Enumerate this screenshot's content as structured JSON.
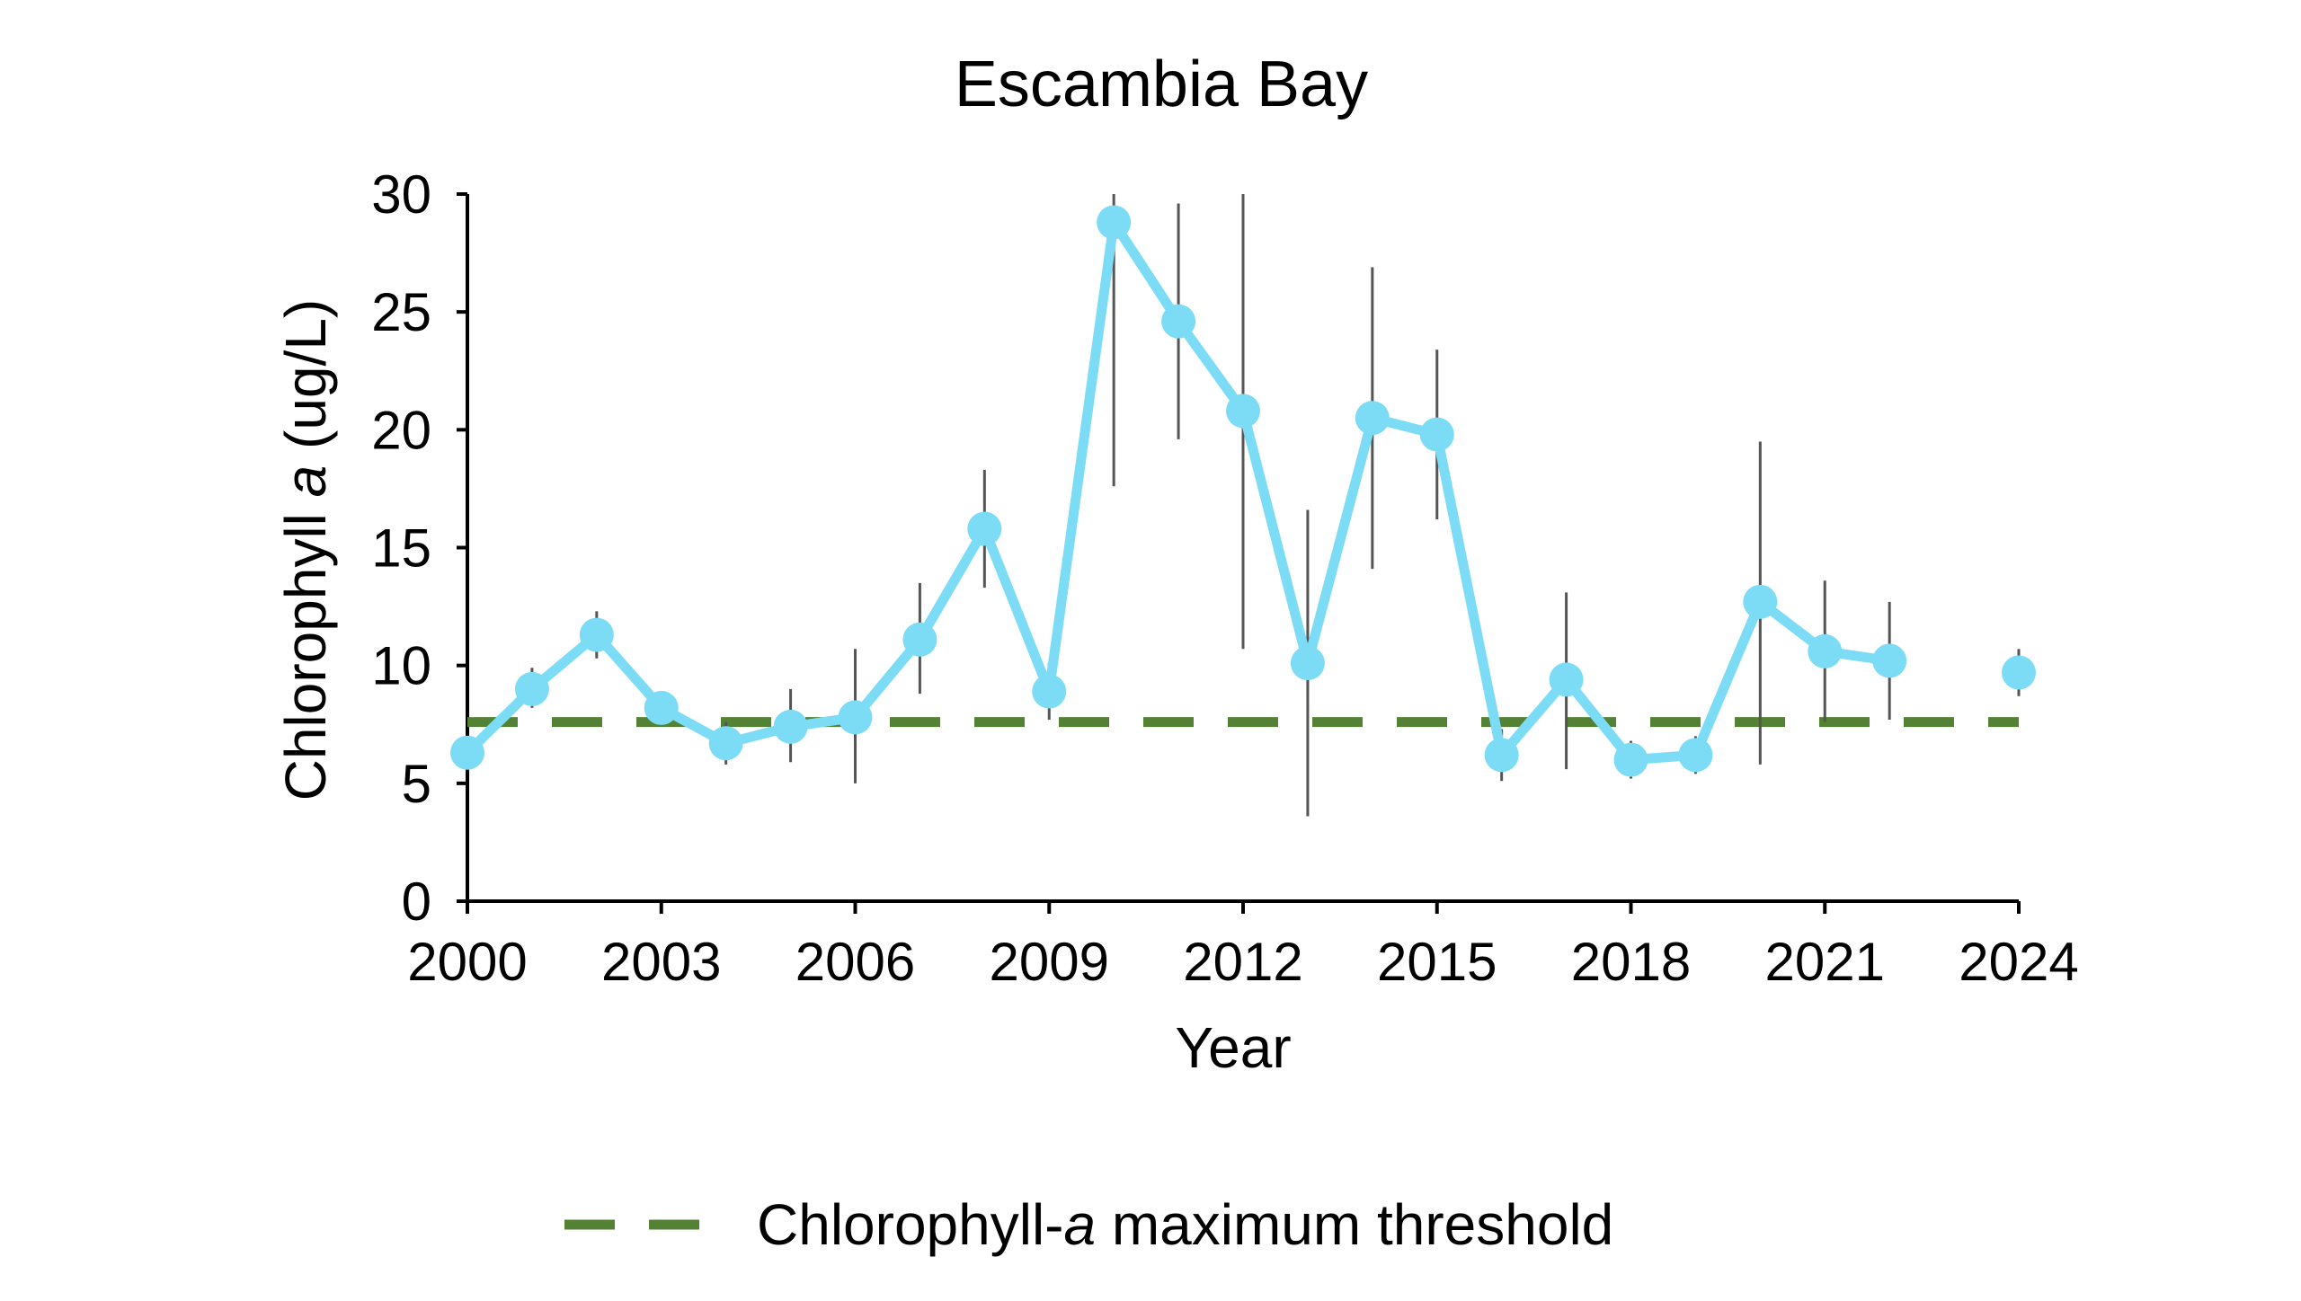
{
  "chart_data": {
    "type": "line",
    "title": "Escambia Bay",
    "xlabel": "Year",
    "ylabel_prefix": "Chlorophyll ",
    "ylabel_italic": "a",
    "ylabel_suffix": " (ug/L)",
    "x_ticks": [
      "2000",
      "2003",
      "2006",
      "2009",
      "2012",
      "2015",
      "2018",
      "2021",
      "2024"
    ],
    "y_ticks": [
      "0",
      "5",
      "10",
      "15",
      "20",
      "25",
      "30"
    ],
    "ylim": [
      0,
      30
    ],
    "xlim": [
      2000,
      2024
    ],
    "grid": false,
    "series": [
      {
        "name": "Chlorophyll a",
        "color": "#7ddcf5",
        "points": [
          {
            "x": 2000,
            "y": 6.3,
            "lo": 6.3,
            "hi": 6.3
          },
          {
            "x": 2001,
            "y": 9.0,
            "lo": 8.2,
            "hi": 9.9
          },
          {
            "x": 2002,
            "y": 11.3,
            "lo": 10.3,
            "hi": 12.3
          },
          {
            "x": 2003,
            "y": 8.2,
            "lo": 8.2,
            "hi": 8.2
          },
          {
            "x": 2004,
            "y": 6.7,
            "lo": 5.8,
            "hi": 7.6
          },
          {
            "x": 2005,
            "y": 7.4,
            "lo": 5.9,
            "hi": 9.0
          },
          {
            "x": 2006,
            "y": 7.8,
            "lo": 5.0,
            "hi": 10.7
          },
          {
            "x": 2007,
            "y": 11.1,
            "lo": 8.8,
            "hi": 13.5
          },
          {
            "x": 2008,
            "y": 15.8,
            "lo": 13.3,
            "hi": 18.3
          },
          {
            "x": 2009,
            "y": 8.9,
            "lo": 7.7,
            "hi": 10.1
          },
          {
            "x": 2010,
            "y": 28.8,
            "lo": 17.6,
            "hi": 30.0
          },
          {
            "x": 2011,
            "y": 24.6,
            "lo": 19.6,
            "hi": 29.6
          },
          {
            "x": 2012,
            "y": 20.8,
            "lo": 10.7,
            "hi": 30.0
          },
          {
            "x": 2013,
            "y": 10.1,
            "lo": 3.6,
            "hi": 16.6
          },
          {
            "x": 2014,
            "y": 20.5,
            "lo": 14.1,
            "hi": 26.9
          },
          {
            "x": 2015,
            "y": 19.8,
            "lo": 16.2,
            "hi": 23.4
          },
          {
            "x": 2016,
            "y": 6.2,
            "lo": 5.1,
            "hi": 7.3
          },
          {
            "x": 2017,
            "y": 9.4,
            "lo": 5.6,
            "hi": 13.1
          },
          {
            "x": 2018,
            "y": 6.0,
            "lo": 5.2,
            "hi": 6.8
          },
          {
            "x": 2019,
            "y": 6.2,
            "lo": 5.4,
            "hi": 7.0
          },
          {
            "x": 2020,
            "y": 12.7,
            "lo": 5.8,
            "hi": 19.5
          },
          {
            "x": 2021,
            "y": 10.6,
            "lo": 7.6,
            "hi": 13.6
          },
          {
            "x": 2022,
            "y": 10.2,
            "lo": 7.7,
            "hi": 12.7
          },
          {
            "x": 2024,
            "y": 9.7,
            "lo": 8.7,
            "hi": 10.7
          }
        ]
      }
    ],
    "threshold": {
      "value": 7.6,
      "color": "#548235",
      "legend_prefix": "Chlorophyll-",
      "legend_italic": "a",
      "legend_suffix": " maximum threshold"
    },
    "legend_position": "bottom"
  }
}
